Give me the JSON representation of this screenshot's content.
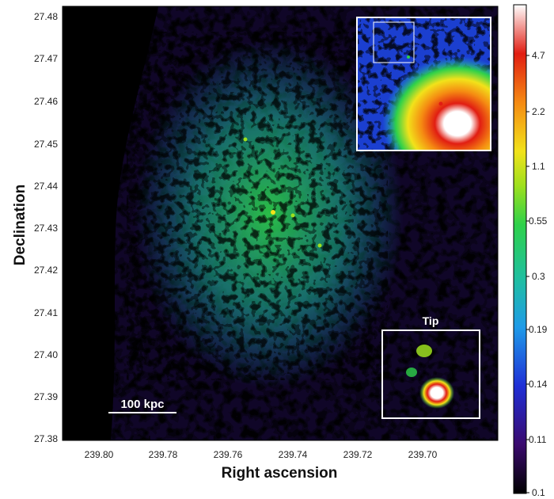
{
  "figure": {
    "y_axis_title": "Declination",
    "x_axis_title": "Right ascension",
    "y_ticks": [
      "27.48",
      "27.47",
      "27.46",
      "27.45",
      "27.44",
      "27.43",
      "27.42",
      "27.41",
      "27.40",
      "27.39",
      "27.38"
    ],
    "x_ticks": [
      "239.80",
      "239.78",
      "239.76",
      "239.74",
      "239.72",
      "239.70"
    ],
    "scale_bar_label": "100 kpc",
    "tip_label": "Tip",
    "colorbar_ticks": [
      "4.7",
      "2.2",
      "1.1",
      "0.55",
      "0.3",
      "0.19",
      "0.14",
      "0.11",
      "0.1"
    ],
    "colormap": [
      "#000000",
      "#3a0a6e",
      "#1f2fd6",
      "#1f9be8",
      "#1fbfa0",
      "#2ed14a",
      "#9ee01d",
      "#f2e21a",
      "#f58a12",
      "#e11d12",
      "#ffffff"
    ]
  }
}
